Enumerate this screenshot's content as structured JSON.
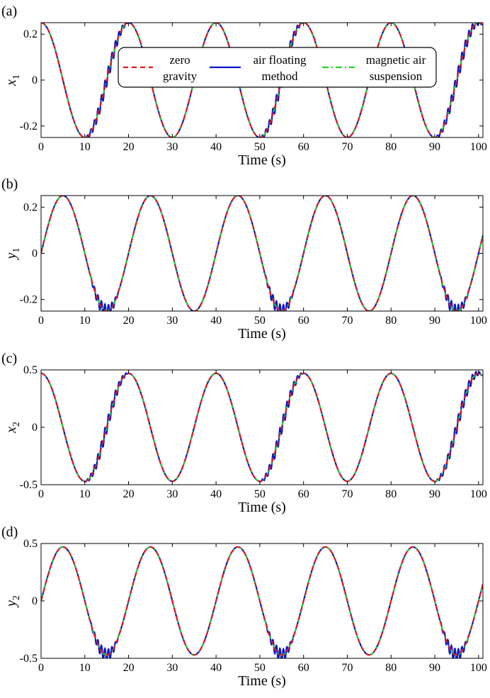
{
  "chart_data": [
    {
      "type": "line",
      "panel": "(a)",
      "xlabel": "Time (s)",
      "ylabel_main": "x",
      "ylabel_sub": "1",
      "xlim": [
        0,
        101
      ],
      "ylim": [
        -0.25,
        0.25
      ],
      "xticks": [
        0,
        10,
        20,
        30,
        40,
        50,
        60,
        70,
        80,
        90,
        100
      ],
      "yticks": [
        -0.2,
        0,
        0.2
      ],
      "ytick_labels": [
        "-0.2",
        "0",
        "0.2"
      ],
      "signal": {
        "func": "cos",
        "amplitude": 0.25,
        "period_s": 20
      },
      "oscillation_intervals_s": [
        [
          10,
          20
        ],
        [
          50,
          60
        ],
        [
          90,
          101
        ]
      ],
      "series": [
        {
          "name_lines": [
            "zero",
            "gravity"
          ],
          "color": "#e8141c",
          "style": "dashed"
        },
        {
          "name_lines": [
            "air floating",
            "method"
          ],
          "color": "#0a14c8",
          "style": "solid"
        },
        {
          "name_lines": [
            "magnetic air",
            "suspension"
          ],
          "color": "#22d427",
          "style": "dashdot"
        }
      ],
      "legend": "top-center"
    },
    {
      "type": "line",
      "panel": "(b)",
      "xlabel": "Time (s)",
      "ylabel_main": "y",
      "ylabel_sub": "1",
      "xlim": [
        0,
        101
      ],
      "ylim": [
        -0.25,
        0.25
      ],
      "xticks": [
        0,
        10,
        20,
        30,
        40,
        50,
        60,
        70,
        80,
        90,
        100
      ],
      "yticks": [
        -0.2,
        0,
        0.2
      ],
      "ytick_labels": [
        "-0.2",
        "0",
        "0.2"
      ],
      "signal": {
        "func": "sin",
        "amplitude": 0.25,
        "period_s": 20
      },
      "oscillation_intervals_s": [
        [
          11,
          18
        ],
        [
          51,
          58
        ],
        [
          91,
          98
        ]
      ]
    },
    {
      "type": "line",
      "panel": "(c)",
      "xlabel": "Time (s)",
      "ylabel_main": "x",
      "ylabel_sub": "2",
      "xlim": [
        0,
        101
      ],
      "ylim": [
        -0.5,
        0.5
      ],
      "xticks": [
        0,
        10,
        20,
        30,
        40,
        50,
        60,
        70,
        80,
        90,
        100
      ],
      "yticks": [
        -0.5,
        0,
        0.5
      ],
      "ytick_labels": [
        "-0.5",
        "0",
        "0.5"
      ],
      "signal": {
        "func": "cos",
        "amplitude": 0.47,
        "period_s": 20
      },
      "oscillation_intervals_s": [
        [
          10,
          20
        ],
        [
          50,
          60
        ],
        [
          90,
          101
        ]
      ]
    },
    {
      "type": "line",
      "panel": "(d)",
      "xlabel": "Time (s)",
      "ylabel_main": "y",
      "ylabel_sub": "2",
      "xlim": [
        0,
        101
      ],
      "ylim": [
        -0.5,
        0.5
      ],
      "xticks": [
        0,
        10,
        20,
        30,
        40,
        50,
        60,
        70,
        80,
        90,
        100
      ],
      "yticks": [
        -0.5,
        0,
        0.5
      ],
      "ytick_labels": [
        "-0.5",
        "0",
        "0.5"
      ],
      "signal": {
        "func": "sin",
        "amplitude": 0.47,
        "period_s": 20
      },
      "oscillation_intervals_s": [
        [
          11,
          18
        ],
        [
          51,
          58
        ],
        [
          91,
          98
        ]
      ]
    }
  ]
}
